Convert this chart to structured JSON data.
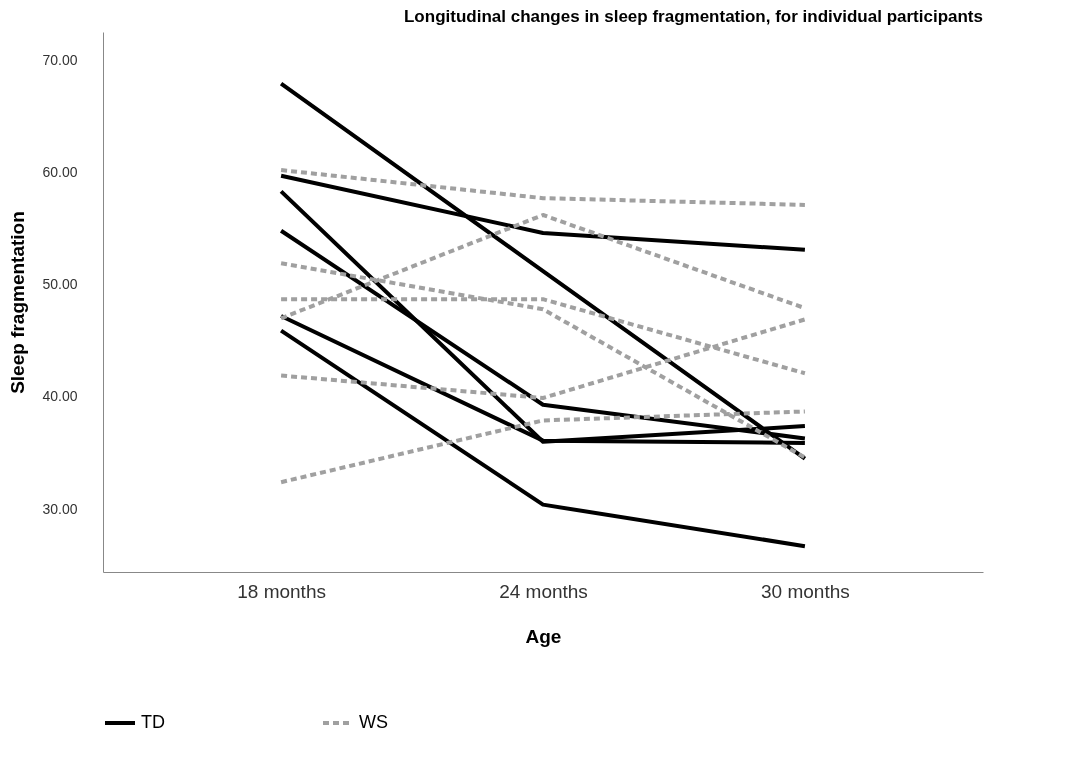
{
  "chart_data": {
    "type": "line",
    "title": "Longitudinal changes in sleep fragmentation, for individual participants",
    "xlabel": "Age",
    "ylabel": "Sleep fragmentation",
    "categories": [
      "18 months",
      "24 months",
      "30 months"
    ],
    "series": [
      {
        "name": "TD",
        "color": "#000000",
        "line_style": "solid",
        "values": [
          67.9,
          51.2,
          34.5
        ]
      },
      {
        "color": "#000000",
        "line_style": "solid",
        "values": [
          59.7,
          54.6,
          53.1
        ]
      },
      {
        "color": "#000000",
        "line_style": "solid",
        "values": [
          58.3,
          36.0,
          37.4
        ]
      },
      {
        "color": "#000000",
        "line_style": "solid",
        "values": [
          54.8,
          39.3,
          36.3
        ]
      },
      {
        "color": "#000000",
        "line_style": "solid",
        "values": [
          47.2,
          36.1,
          35.9
        ]
      },
      {
        "color": "#000000",
        "line_style": "solid",
        "values": [
          45.9,
          30.4,
          26.7
        ]
      },
      {
        "name": "WS",
        "color": "#a0a0a0",
        "line_style": "dashed",
        "values": [
          60.2,
          57.7,
          57.1
        ]
      },
      {
        "color": "#a0a0a0",
        "line_style": "dashed",
        "values": [
          47.0,
          56.2,
          47.9
        ]
      },
      {
        "color": "#a0a0a0",
        "line_style": "dashed",
        "values": [
          51.9,
          47.8,
          34.6
        ]
      },
      {
        "color": "#a0a0a0",
        "line_style": "dashed",
        "values": [
          48.7,
          48.7,
          42.1
        ]
      },
      {
        "color": "#a0a0a0",
        "line_style": "dashed",
        "values": [
          41.9,
          39.9,
          46.9
        ]
      },
      {
        "color": "#a0a0a0",
        "line_style": "dashed",
        "values": [
          32.4,
          37.9,
          38.7
        ]
      }
    ],
    "ylim": [
      24.4,
      72.5
    ],
    "yticks": [
      {
        "value": 30,
        "label": "30.00"
      },
      {
        "value": 40,
        "label": "40.00"
      },
      {
        "value": 50,
        "label": "50.00"
      },
      {
        "value": 60,
        "label": "60.00"
      },
      {
        "value": 70,
        "label": "70.00"
      }
    ],
    "grid": false,
    "legend": "bottom",
    "marker": "none"
  }
}
